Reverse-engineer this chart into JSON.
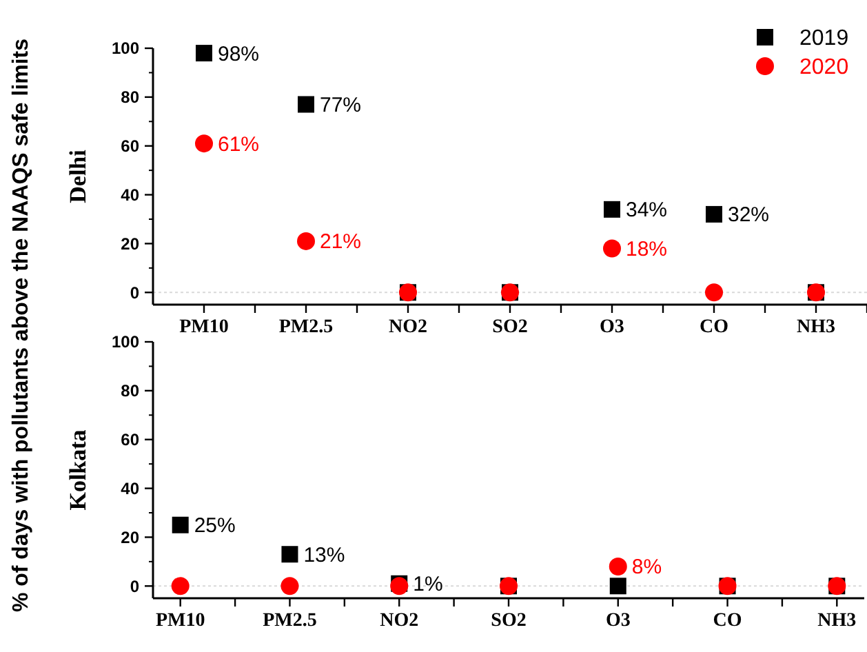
{
  "chart_data": [
    {
      "type": "scatter",
      "title": "Delhi",
      "ylabel": "% of days with pollutants above the NAAQS safe limits",
      "categories": [
        "PM10",
        "PM2.5",
        "NO2",
        "SO2",
        "O3",
        "CO",
        "NH3"
      ],
      "series": [
        {
          "name": "2019",
          "color": "#000000",
          "marker": "square",
          "values": [
            98,
            77,
            0,
            0,
            34,
            32,
            0
          ],
          "value_labels": [
            "98%",
            "77%",
            null,
            null,
            "34%",
            "32%",
            null
          ]
        },
        {
          "name": "2020",
          "color": "#ff0000",
          "marker": "circle",
          "values": [
            61,
            21,
            0,
            0,
            18,
            0,
            0
          ],
          "value_labels": [
            "61%",
            "21%",
            null,
            null,
            "18%",
            null,
            null
          ]
        }
      ],
      "ylim": [
        -5,
        100
      ],
      "yticks": [
        0,
        20,
        40,
        60,
        80,
        100
      ],
      "grid": false,
      "legend": "top right",
      "ref_lines": [
        {
          "axis": "y",
          "value": 0,
          "color": "#d9d9d9",
          "line_style": "dotted"
        }
      ]
    },
    {
      "type": "scatter",
      "title": "Kolkata",
      "categories": [
        "PM10",
        "PM2.5",
        "NO2",
        "SO2",
        "O3",
        "CO",
        "NH3"
      ],
      "series": [
        {
          "color": "#000000",
          "marker": "square",
          "values": [
            25,
            13,
            1,
            0,
            0,
            0,
            0
          ],
          "value_labels": [
            "25%",
            "13%",
            "1%",
            null,
            null,
            null,
            null
          ]
        },
        {
          "color": "#ff0000",
          "marker": "circle",
          "values": [
            0,
            0,
            0,
            0,
            8,
            0,
            0
          ],
          "value_labels": [
            null,
            null,
            null,
            null,
            "8%",
            null,
            null
          ]
        }
      ],
      "ylim": [
        -5,
        100
      ],
      "yticks": [
        0,
        20,
        40,
        60,
        80,
        100
      ],
      "grid": false,
      "legend": false,
      "ref_lines": [
        {
          "axis": "y",
          "value": 0,
          "color": "#d9d9d9",
          "line_style": "dotted"
        }
      ]
    }
  ]
}
